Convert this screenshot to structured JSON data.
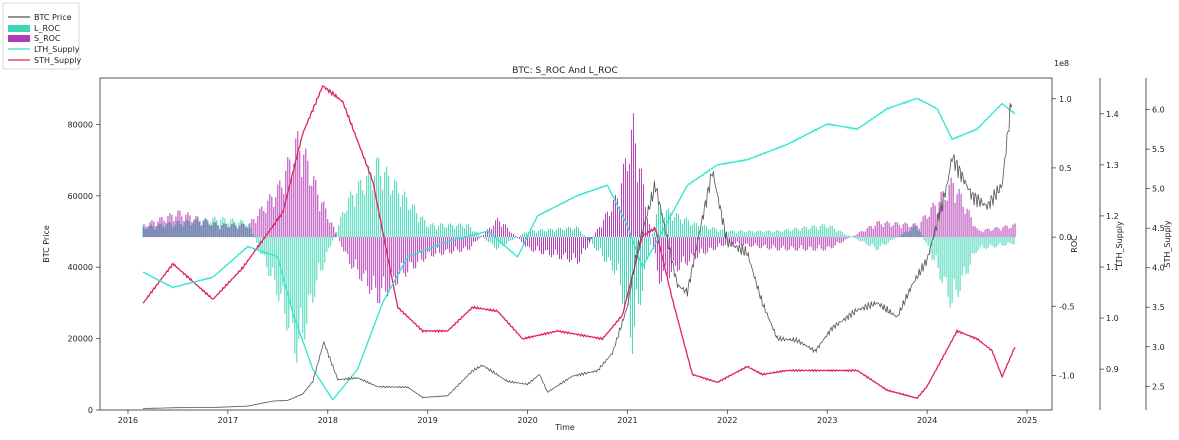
{
  "chart_data": {
    "type": "line",
    "title": "BTC: S_ROC And L_ROC",
    "xlabel": "Time",
    "x_ticks": [
      "2016",
      "2017",
      "2018",
      "2019",
      "2020",
      "2021",
      "2022",
      "2023",
      "2024",
      "2025"
    ],
    "legend": {
      "placement": "top-left",
      "entries": [
        "BTC Price",
        "L_ROC",
        "S_ROC",
        "LTH_Supply",
        "STH_Supply"
      ]
    },
    "colors": {
      "btc_price": "#555555",
      "l_roc": "#3fd6b4",
      "s_roc": "#b33ab5",
      "lth_supply": "#2fe6d0",
      "sth_supply": "#e0245e"
    },
    "axes": {
      "price": {
        "label": "BTC Price",
        "ylim": [
          0,
          93000
        ],
        "ticks": [
          "0",
          "20000",
          "40000",
          "60000",
          "80000"
        ]
      },
      "roc": {
        "label": "ROC",
        "multiplier": "1e8",
        "ylim": [
          -1.25,
          1.15
        ],
        "ticks": [
          "-1.0",
          "-0.5",
          "0.0",
          "0.5",
          "1.0"
        ]
      },
      "lth": {
        "label": "LTH_Supply",
        "ylim": [
          0.82,
          1.47
        ],
        "ticks": [
          "0.9",
          "1.0",
          "1.1",
          "1.2",
          "1.3",
          "1.4"
        ]
      },
      "sth": {
        "label": "STH_Supply",
        "ylim": [
          2.2,
          6.4
        ],
        "ticks": [
          "2.5",
          "3.0",
          "3.5",
          "4.0",
          "4.5",
          "5.0",
          "5.5",
          "6.0"
        ]
      }
    },
    "series": [
      {
        "name": "BTC Price",
        "points": [
          [
            2016.15,
            420
          ],
          [
            2016.5,
            650
          ],
          [
            2016.9,
            750
          ],
          [
            2017.2,
            1100
          ],
          [
            2017.45,
            2500
          ],
          [
            2017.6,
            2700
          ],
          [
            2017.75,
            4500
          ],
          [
            2017.85,
            8000
          ],
          [
            2017.96,
            19000
          ],
          [
            2018.1,
            8500
          ],
          [
            2018.3,
            9000
          ],
          [
            2018.5,
            6500
          ],
          [
            2018.8,
            6400
          ],
          [
            2018.95,
            3500
          ],
          [
            2019.2,
            4000
          ],
          [
            2019.45,
            11000
          ],
          [
            2019.55,
            12500
          ],
          [
            2019.8,
            8000
          ],
          [
            2020.0,
            7200
          ],
          [
            2020.12,
            10000
          ],
          [
            2020.2,
            5000
          ],
          [
            2020.45,
            9500
          ],
          [
            2020.7,
            11000
          ],
          [
            2020.85,
            16000
          ],
          [
            2021.0,
            29000
          ],
          [
            2021.1,
            45000
          ],
          [
            2021.28,
            63000
          ],
          [
            2021.5,
            35000
          ],
          [
            2021.6,
            33000
          ],
          [
            2021.7,
            47000
          ],
          [
            2021.85,
            67000
          ],
          [
            2022.0,
            47000
          ],
          [
            2022.2,
            44000
          ],
          [
            2022.35,
            30000
          ],
          [
            2022.5,
            20000
          ],
          [
            2022.7,
            19500
          ],
          [
            2022.88,
            16500
          ],
          [
            2023.05,
            23000
          ],
          [
            2023.3,
            28000
          ],
          [
            2023.5,
            30000
          ],
          [
            2023.7,
            26000
          ],
          [
            2023.85,
            35000
          ],
          [
            2024.0,
            42000
          ],
          [
            2024.2,
            63000
          ],
          [
            2024.25,
            71000
          ],
          [
            2024.45,
            60000
          ],
          [
            2024.6,
            57000
          ],
          [
            2024.75,
            63000
          ],
          [
            2024.85,
            88000
          ]
        ]
      },
      {
        "name": "LTH_Supply",
        "points": [
          [
            2016.15,
            1.09
          ],
          [
            2016.45,
            1.06
          ],
          [
            2016.85,
            1.08
          ],
          [
            2017.2,
            1.14
          ],
          [
            2017.5,
            1.12
          ],
          [
            2017.65,
            1.01
          ],
          [
            2017.85,
            0.9
          ],
          [
            2018.05,
            0.84
          ],
          [
            2018.3,
            0.9
          ],
          [
            2018.55,
            1.03
          ],
          [
            2018.8,
            1.12
          ],
          [
            2019.2,
            1.15
          ],
          [
            2019.6,
            1.17
          ],
          [
            2019.9,
            1.12
          ],
          [
            2020.1,
            1.2
          ],
          [
            2020.5,
            1.24
          ],
          [
            2020.8,
            1.26
          ],
          [
            2021.0,
            1.18
          ],
          [
            2021.15,
            1.1
          ],
          [
            2021.35,
            1.17
          ],
          [
            2021.6,
            1.26
          ],
          [
            2021.9,
            1.3
          ],
          [
            2022.2,
            1.31
          ],
          [
            2022.6,
            1.34
          ],
          [
            2023.0,
            1.38
          ],
          [
            2023.3,
            1.37
          ],
          [
            2023.6,
            1.41
          ],
          [
            2023.9,
            1.43
          ],
          [
            2024.1,
            1.41
          ],
          [
            2024.25,
            1.35
          ],
          [
            2024.5,
            1.37
          ],
          [
            2024.75,
            1.42
          ],
          [
            2024.88,
            1.4
          ]
        ]
      },
      {
        "name": "STH_Supply",
        "points": [
          [
            2016.15,
            3.55
          ],
          [
            2016.45,
            4.05
          ],
          [
            2016.85,
            3.6
          ],
          [
            2017.15,
            4.0
          ],
          [
            2017.55,
            4.7
          ],
          [
            2017.75,
            5.7
          ],
          [
            2017.95,
            6.3
          ],
          [
            2018.15,
            6.1
          ],
          [
            2018.45,
            5.1
          ],
          [
            2018.7,
            3.5
          ],
          [
            2018.95,
            3.2
          ],
          [
            2019.2,
            3.2
          ],
          [
            2019.45,
            3.5
          ],
          [
            2019.7,
            3.45
          ],
          [
            2019.95,
            3.1
          ],
          [
            2020.3,
            3.2
          ],
          [
            2020.75,
            3.1
          ],
          [
            2020.95,
            3.4
          ],
          [
            2021.15,
            4.4
          ],
          [
            2021.28,
            4.5
          ],
          [
            2021.45,
            3.6
          ],
          [
            2021.65,
            2.65
          ],
          [
            2021.9,
            2.55
          ],
          [
            2022.2,
            2.75
          ],
          [
            2022.35,
            2.65
          ],
          [
            2022.6,
            2.7
          ],
          [
            2022.9,
            2.7
          ],
          [
            2023.3,
            2.7
          ],
          [
            2023.6,
            2.45
          ],
          [
            2023.9,
            2.35
          ],
          [
            2024.0,
            2.5
          ],
          [
            2024.3,
            3.2
          ],
          [
            2024.5,
            3.1
          ],
          [
            2024.65,
            2.95
          ],
          [
            2024.75,
            2.62
          ],
          [
            2024.88,
            3.0
          ]
        ]
      },
      {
        "name": "L_ROC",
        "envelope": [
          [
            2016.15,
            0.08
          ],
          [
            2016.5,
            0.12
          ],
          [
            2016.9,
            0.15
          ],
          [
            2017.2,
            0.12
          ],
          [
            2017.5,
            -0.45
          ],
          [
            2017.7,
            -0.95
          ],
          [
            2017.9,
            -0.35
          ],
          [
            2018.2,
            0.3
          ],
          [
            2018.5,
            0.6
          ],
          [
            2018.75,
            0.35
          ],
          [
            2019.0,
            0.1
          ],
          [
            2019.4,
            0.1
          ],
          [
            2019.7,
            -0.1
          ],
          [
            2020.0,
            0.05
          ],
          [
            2020.5,
            0.08
          ],
          [
            2020.9,
            -0.3
          ],
          [
            2021.05,
            -0.85
          ],
          [
            2021.3,
            0.25
          ],
          [
            2021.7,
            0.1
          ],
          [
            2022.0,
            0.05
          ],
          [
            2022.5,
            0.05
          ],
          [
            2023.0,
            0.1
          ],
          [
            2023.5,
            -0.1
          ],
          [
            2023.9,
            0.1
          ],
          [
            2024.1,
            -0.25
          ],
          [
            2024.25,
            -0.55
          ],
          [
            2024.5,
            -0.1
          ],
          [
            2024.88,
            -0.05
          ]
        ]
      },
      {
        "name": "S_ROC",
        "envelope": [
          [
            2016.15,
            0.1
          ],
          [
            2016.5,
            0.2
          ],
          [
            2016.9,
            0.1
          ],
          [
            2017.2,
            0.1
          ],
          [
            2017.5,
            0.4
          ],
          [
            2017.7,
            0.8
          ],
          [
            2017.9,
            0.35
          ],
          [
            2018.2,
            -0.2
          ],
          [
            2018.5,
            -0.5
          ],
          [
            2018.75,
            -0.3
          ],
          [
            2019.0,
            -0.15
          ],
          [
            2019.4,
            -0.1
          ],
          [
            2019.7,
            0.15
          ],
          [
            2020.0,
            -0.1
          ],
          [
            2020.5,
            -0.2
          ],
          [
            2020.9,
            0.35
          ],
          [
            2021.05,
            0.9
          ],
          [
            2021.3,
            -0.35
          ],
          [
            2021.7,
            -0.15
          ],
          [
            2022.0,
            -0.05
          ],
          [
            2022.5,
            -0.1
          ],
          [
            2023.0,
            -0.1
          ],
          [
            2023.5,
            0.12
          ],
          [
            2023.9,
            0.1
          ],
          [
            2024.1,
            0.3
          ],
          [
            2024.25,
            0.45
          ],
          [
            2024.5,
            0.05
          ],
          [
            2024.88,
            0.1
          ]
        ]
      }
    ]
  }
}
